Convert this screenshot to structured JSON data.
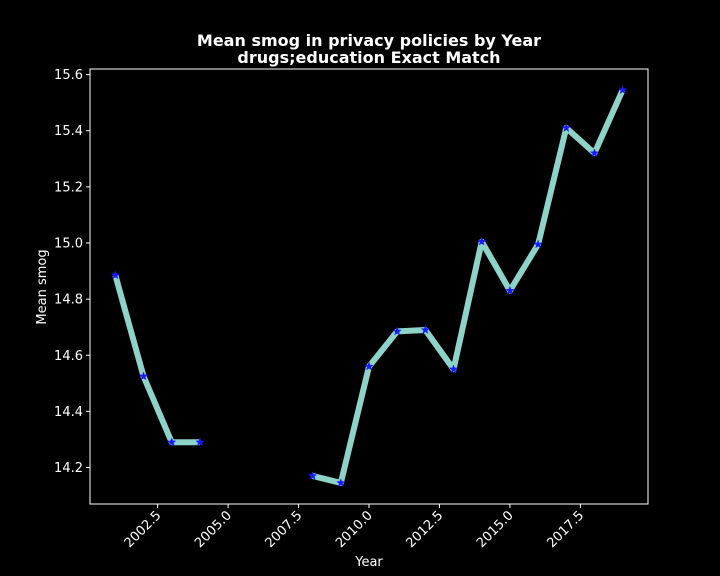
{
  "chart_data": {
    "type": "line",
    "title": "Mean smog in privacy policies by Year",
    "subtitle": "drugs;education Exact Match",
    "xlabel": "Year",
    "ylabel": "Mean smog",
    "xlim": [
      2000.1,
      2019.9
    ],
    "ylim": [
      14.07,
      15.62
    ],
    "x_ticks": [
      2002.5,
      2005.0,
      2007.5,
      2010.0,
      2012.5,
      2015.0,
      2017.5
    ],
    "x_tick_labels": [
      "2002.5",
      "2005.0",
      "2007.5",
      "2010.0",
      "2012.5",
      "2015.0",
      "2017.5"
    ],
    "y_ticks": [
      14.2,
      14.4,
      14.6,
      14.8,
      15.0,
      15.2,
      15.4,
      15.6
    ],
    "y_tick_labels": [
      "14.2",
      "14.4",
      "14.6",
      "14.8",
      "15.0",
      "15.2",
      "15.4",
      "15.6"
    ],
    "grid": false,
    "series": [
      {
        "line_color": "#8dd3c7",
        "marker_color": "#1a1aff",
        "marker": "star",
        "segments": [
          {
            "x": [
              2001,
              2002,
              2003,
              2004
            ],
            "y": [
              14.885,
              14.525,
              14.29,
              14.29
            ]
          },
          {
            "x": [
              2008,
              2009,
              2010,
              2011,
              2012,
              2013,
              2014,
              2015,
              2016,
              2017,
              2018,
              2019
            ],
            "y": [
              14.17,
              14.145,
              14.56,
              14.685,
              14.69,
              14.55,
              15.005,
              14.83,
              14.995,
              15.41,
              15.32,
              15.545
            ]
          }
        ]
      }
    ],
    "colors": {
      "background": "#000000",
      "axes": "#ffffff",
      "text": "#ffffff"
    }
  }
}
